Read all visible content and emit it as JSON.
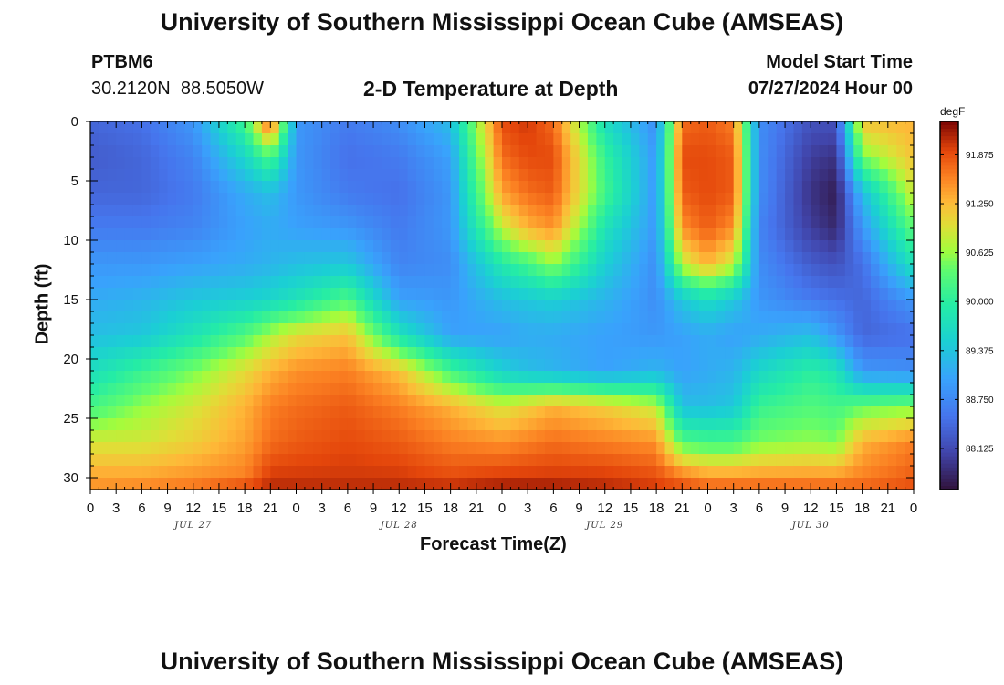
{
  "header": {
    "title_top": "University of Southern Mississippi Ocean Cube (AMSEAS)",
    "title_bottom": "University of Southern Mississippi Ocean Cube (AMSEAS)",
    "station_id": "PTBM6",
    "station_coords": "30.2120N  88.5050W",
    "plot_title": "2-D Temperature at Depth",
    "model_start_label": "Model Start Time",
    "model_start_value": "07/27/2024 Hour 00"
  },
  "chart_data": {
    "type": "heatmap",
    "title": "2-D Temperature at Depth",
    "xlabel": "Forecast Time(Z)",
    "ylabel": "Depth (ft)",
    "x_unit": "hours since 07/27/2024 00Z",
    "xlim": [
      0,
      96
    ],
    "ylim": [
      31,
      0
    ],
    "x_tick_values": [
      0,
      3,
      6,
      9,
      12,
      15,
      18,
      21,
      24,
      27,
      30,
      33,
      36,
      39,
      42,
      45,
      48,
      51,
      54,
      57,
      60,
      63,
      66,
      69,
      72,
      75,
      78,
      81,
      84,
      87,
      90,
      93,
      96
    ],
    "x_tick_labels": [
      "0",
      "3",
      "6",
      "9",
      "12",
      "15",
      "18",
      "21",
      "0",
      "3",
      "6",
      "9",
      "12",
      "15",
      "18",
      "21",
      "0",
      "3",
      "6",
      "9",
      "12",
      "15",
      "18",
      "21",
      "0",
      "3",
      "6",
      "9",
      "12",
      "15",
      "18",
      "21",
      "0"
    ],
    "day_labels": [
      {
        "hour": 12,
        "label": "JUL 27"
      },
      {
        "hour": 36,
        "label": "JUL 28"
      },
      {
        "hour": 60,
        "label": "JUL 29"
      },
      {
        "hour": 84,
        "label": "JUL 30"
      }
    ],
    "y_ticks": [
      0,
      5,
      10,
      15,
      20,
      25,
      30
    ],
    "colorbar": {
      "unit": "degF",
      "min": 87.6,
      "max": 92.3,
      "ticks": [
        "91.875",
        "91.250",
        "90.625",
        "90.000",
        "89.375",
        "88.750",
        "88.125"
      ]
    },
    "depths_ft": [
      0,
      3,
      6,
      9,
      12,
      15,
      18,
      21,
      24,
      27,
      30,
      31
    ],
    "times_hr": [
      0,
      6,
      12,
      18,
      21,
      24,
      30,
      36,
      42,
      48,
      51,
      54,
      60,
      66,
      69,
      72,
      75,
      78,
      84,
      87,
      90,
      96
    ],
    "values_degF": [
      [
        88.4,
        88.5,
        88.9,
        90.2,
        91.9,
        88.9,
        88.6,
        88.8,
        89.3,
        91.9,
        92.0,
        91.7,
        89.7,
        88.8,
        91.7,
        91.8,
        91.6,
        88.8,
        88.2,
        88.2,
        91.2,
        91.3
      ],
      [
        88.3,
        88.4,
        88.7,
        89.6,
        90.3,
        88.9,
        88.5,
        88.6,
        89.0,
        91.7,
        91.9,
        91.9,
        90.1,
        88.9,
        91.9,
        91.9,
        91.8,
        88.8,
        88.0,
        87.9,
        90.5,
        91.2
      ],
      [
        88.4,
        88.4,
        88.6,
        89.1,
        89.3,
        88.9,
        88.6,
        88.5,
        88.9,
        91.4,
        91.7,
        91.8,
        90.2,
        88.9,
        91.8,
        91.9,
        91.8,
        88.8,
        87.9,
        87.7,
        89.3,
        90.9
      ],
      [
        88.6,
        88.6,
        88.7,
        89.0,
        89.1,
        89.0,
        88.9,
        88.6,
        88.9,
        90.8,
        91.3,
        91.5,
        89.8,
        88.9,
        91.5,
        91.8,
        91.5,
        88.7,
        88.0,
        87.8,
        88.9,
        90.4
      ],
      [
        88.9,
        88.9,
        89.0,
        89.1,
        89.2,
        89.3,
        89.4,
        88.7,
        88.8,
        89.9,
        90.2,
        90.6,
        89.5,
        88.8,
        90.8,
        91.3,
        90.8,
        88.8,
        88.3,
        88.2,
        88.5,
        89.8
      ],
      [
        89.1,
        89.2,
        89.4,
        89.5,
        89.6,
        89.8,
        90.3,
        89.0,
        88.9,
        89.3,
        89.4,
        89.5,
        89.2,
        88.8,
        89.4,
        89.7,
        89.4,
        88.9,
        88.6,
        88.5,
        88.4,
        88.9
      ],
      [
        89.3,
        89.4,
        89.8,
        90.3,
        90.7,
        91.0,
        91.2,
        89.8,
        89.0,
        89.0,
        89.1,
        89.1,
        89.0,
        88.9,
        89.0,
        89.1,
        89.0,
        89.1,
        89.3,
        88.9,
        88.4,
        88.5
      ],
      [
        89.7,
        90.1,
        90.5,
        91.0,
        91.3,
        91.5,
        91.6,
        91.2,
        90.2,
        89.5,
        89.3,
        89.2,
        89.0,
        89.2,
        89.0,
        89.1,
        89.2,
        89.6,
        90.0,
        89.8,
        88.9,
        88.8
      ],
      [
        90.2,
        90.6,
        90.9,
        91.3,
        91.6,
        91.7,
        91.8,
        91.6,
        91.3,
        90.9,
        91.1,
        91.3,
        91.1,
        90.8,
        89.3,
        89.3,
        89.4,
        90.1,
        90.3,
        90.2,
        90.4,
        90.5
      ],
      [
        90.9,
        90.9,
        91.1,
        91.4,
        91.7,
        91.8,
        91.9,
        91.8,
        91.6,
        91.5,
        91.6,
        91.7,
        91.6,
        91.5,
        90.3,
        90.2,
        90.2,
        90.5,
        90.6,
        90.5,
        91.3,
        91.6
      ],
      [
        91.4,
        91.4,
        91.5,
        91.6,
        92.0,
        92.0,
        92.0,
        92.0,
        91.9,
        92.0,
        92.0,
        92.0,
        92.0,
        91.9,
        91.7,
        91.5,
        91.5,
        91.5,
        91.5,
        91.5,
        91.6,
        91.8
      ],
      [
        91.5,
        91.6,
        91.7,
        92.0,
        92.1,
        92.1,
        92.1,
        92.1,
        92.1,
        92.2,
        92.2,
        92.2,
        92.1,
        92.0,
        91.9,
        91.8,
        91.8,
        91.8,
        91.8,
        91.8,
        91.8,
        91.9
      ]
    ]
  }
}
